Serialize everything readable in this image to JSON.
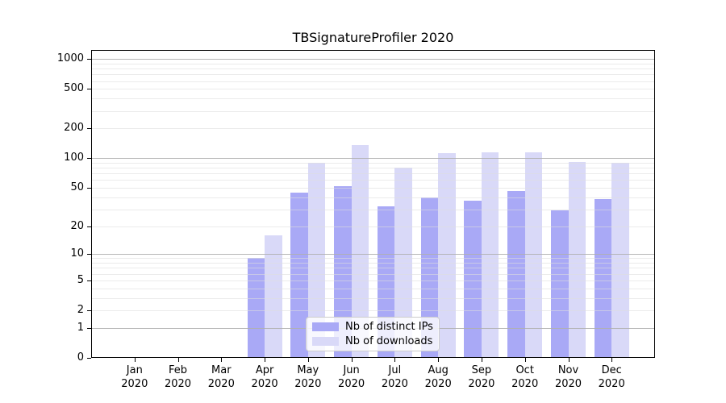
{
  "chart_data": {
    "type": "bar",
    "title": "TBSignatureProfiler 2020",
    "categories": [
      "Jan 2020",
      "Feb 2020",
      "Mar 2020",
      "Apr 2020",
      "May 2020",
      "Jun 2020",
      "Jul 2020",
      "Aug 2020",
      "Sep 2020",
      "Oct 2020",
      "Nov 2020",
      "Dec 2020"
    ],
    "series": [
      {
        "name": "Nb of distinct IPs",
        "color": "#a9a9f6",
        "values": [
          0,
          0,
          0,
          9,
          45,
          52,
          32,
          40,
          37,
          46,
          29,
          38
        ]
      },
      {
        "name": "Nb of downloads",
        "color": "#d9d9f8",
        "values": [
          0,
          0,
          0,
          16,
          89,
          136,
          80,
          113,
          114,
          115,
          92,
          89
        ]
      }
    ],
    "xlabel": "",
    "ylabel": "",
    "yscale": "log1p",
    "ylim": [
      0,
      1230
    ],
    "yticks": [
      0,
      1,
      2,
      5,
      10,
      20,
      50,
      100,
      200,
      500,
      1000
    ],
    "grid": {
      "major": [
        1,
        10,
        100,
        1000
      ],
      "minor": [
        2,
        3,
        4,
        5,
        6,
        7,
        8,
        9,
        20,
        30,
        40,
        50,
        60,
        70,
        80,
        90,
        200,
        300,
        400,
        500,
        600,
        700,
        800,
        900
      ]
    },
    "legend": {
      "position": "lower center"
    }
  }
}
